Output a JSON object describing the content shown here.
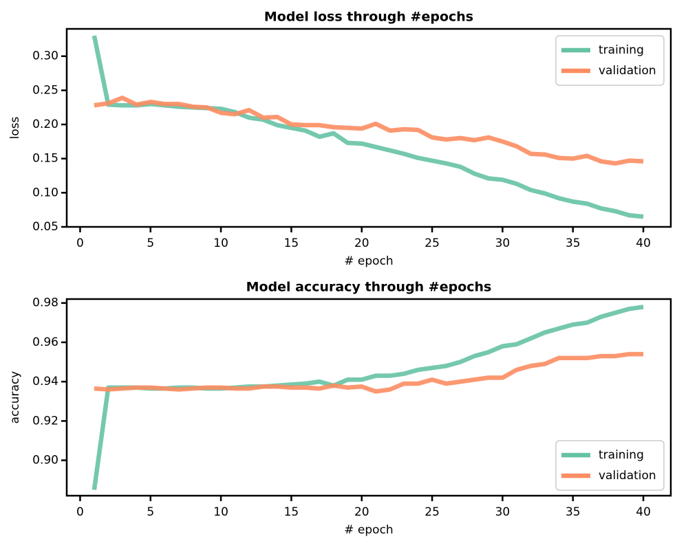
{
  "chart_data": [
    {
      "type": "line",
      "title": "Model loss through #epochs",
      "x_label": "# epoch",
      "y_label": "loss",
      "x": [
        1,
        2,
        3,
        4,
        5,
        6,
        7,
        8,
        9,
        10,
        11,
        12,
        13,
        14,
        15,
        16,
        17,
        18,
        19,
        20,
        21,
        22,
        23,
        24,
        25,
        26,
        27,
        28,
        29,
        30,
        31,
        32,
        33,
        34,
        35,
        36,
        37,
        38,
        39,
        40
      ],
      "series": [
        {
          "name": "training",
          "color": "#66c2a5",
          "values": [
            0.33,
            0.229,
            0.228,
            0.228,
            0.23,
            0.228,
            0.226,
            0.225,
            0.224,
            0.223,
            0.218,
            0.21,
            0.207,
            0.199,
            0.195,
            0.191,
            0.182,
            0.187,
            0.173,
            0.172,
            0.167,
            0.162,
            0.157,
            0.151,
            0.147,
            0.143,
            0.138,
            0.128,
            0.121,
            0.119,
            0.113,
            0.104,
            0.099,
            0.092,
            0.087,
            0.084,
            0.077,
            0.073,
            0.067,
            0.065
          ]
        },
        {
          "name": "validation",
          "color": "#fc8d62",
          "values": [
            0.228,
            0.231,
            0.239,
            0.229,
            0.233,
            0.23,
            0.23,
            0.226,
            0.225,
            0.217,
            0.215,
            0.221,
            0.21,
            0.211,
            0.2,
            0.199,
            0.199,
            0.196,
            0.195,
            0.194,
            0.201,
            0.191,
            0.193,
            0.192,
            0.181,
            0.178,
            0.18,
            0.177,
            0.181,
            0.175,
            0.168,
            0.157,
            0.156,
            0.151,
            0.15,
            0.154,
            0.146,
            0.143,
            0.147,
            0.146
          ]
        }
      ],
      "xlim": [
        -0.95,
        41.95
      ],
      "xticks": [
        0,
        5,
        10,
        15,
        20,
        25,
        30,
        35,
        40
      ],
      "ylim": [
        0.05,
        0.34
      ],
      "yticks": [
        0.05,
        {
          "value": 0.1,
          "label": "0.10"
        },
        0.15,
        {
          "value": 0.2,
          "label": "0.20"
        },
        0.25,
        {
          "value": 0.3,
          "label": "0.30"
        }
      ],
      "legend": "upper right",
      "grid": false
    },
    {
      "type": "line",
      "title": "Model accuracy through #epochs",
      "x_label": "# epoch",
      "y_label": "accuracy",
      "x": [
        1,
        2,
        3,
        4,
        5,
        6,
        7,
        8,
        9,
        10,
        11,
        12,
        13,
        14,
        15,
        16,
        17,
        18,
        19,
        20,
        21,
        22,
        23,
        24,
        25,
        26,
        27,
        28,
        29,
        30,
        31,
        32,
        33,
        34,
        35,
        36,
        37,
        38,
        39,
        40
      ],
      "series": [
        {
          "name": "training",
          "color": "#66c2a5",
          "values": [
            0.885,
            0.937,
            0.937,
            0.937,
            0.9365,
            0.9365,
            0.937,
            0.937,
            0.9365,
            0.9365,
            0.937,
            0.9375,
            0.9375,
            0.938,
            0.9385,
            0.939,
            0.94,
            0.938,
            0.941,
            0.941,
            0.943,
            0.943,
            0.944,
            0.946,
            0.947,
            0.948,
            0.95,
            0.953,
            0.955,
            0.958,
            0.959,
            0.962,
            0.965,
            0.967,
            0.969,
            0.97,
            0.973,
            0.975,
            0.977,
            0.978
          ]
        },
        {
          "name": "validation",
          "color": "#fc8d62",
          "values": [
            0.9365,
            0.936,
            0.9365,
            0.937,
            0.937,
            0.9365,
            0.936,
            0.9365,
            0.937,
            0.937,
            0.9365,
            0.9365,
            0.9375,
            0.9375,
            0.937,
            0.937,
            0.9365,
            0.938,
            0.937,
            0.9375,
            0.935,
            0.936,
            0.939,
            0.939,
            0.941,
            0.939,
            0.94,
            0.941,
            0.942,
            0.942,
            0.946,
            0.948,
            0.949,
            0.952,
            0.952,
            0.952,
            0.953,
            0.953,
            0.954,
            0.954
          ]
        }
      ],
      "xlim": [
        -0.95,
        41.95
      ],
      "xticks": [
        0,
        5,
        10,
        15,
        20,
        25,
        30,
        35,
        40
      ],
      "ylim": [
        0.882,
        0.982
      ],
      "yticks": [
        {
          "value": 0.9,
          "label": "0.90"
        },
        0.92,
        0.94,
        0.96,
        0.98
      ],
      "legend": "lower right",
      "grid": false
    }
  ]
}
